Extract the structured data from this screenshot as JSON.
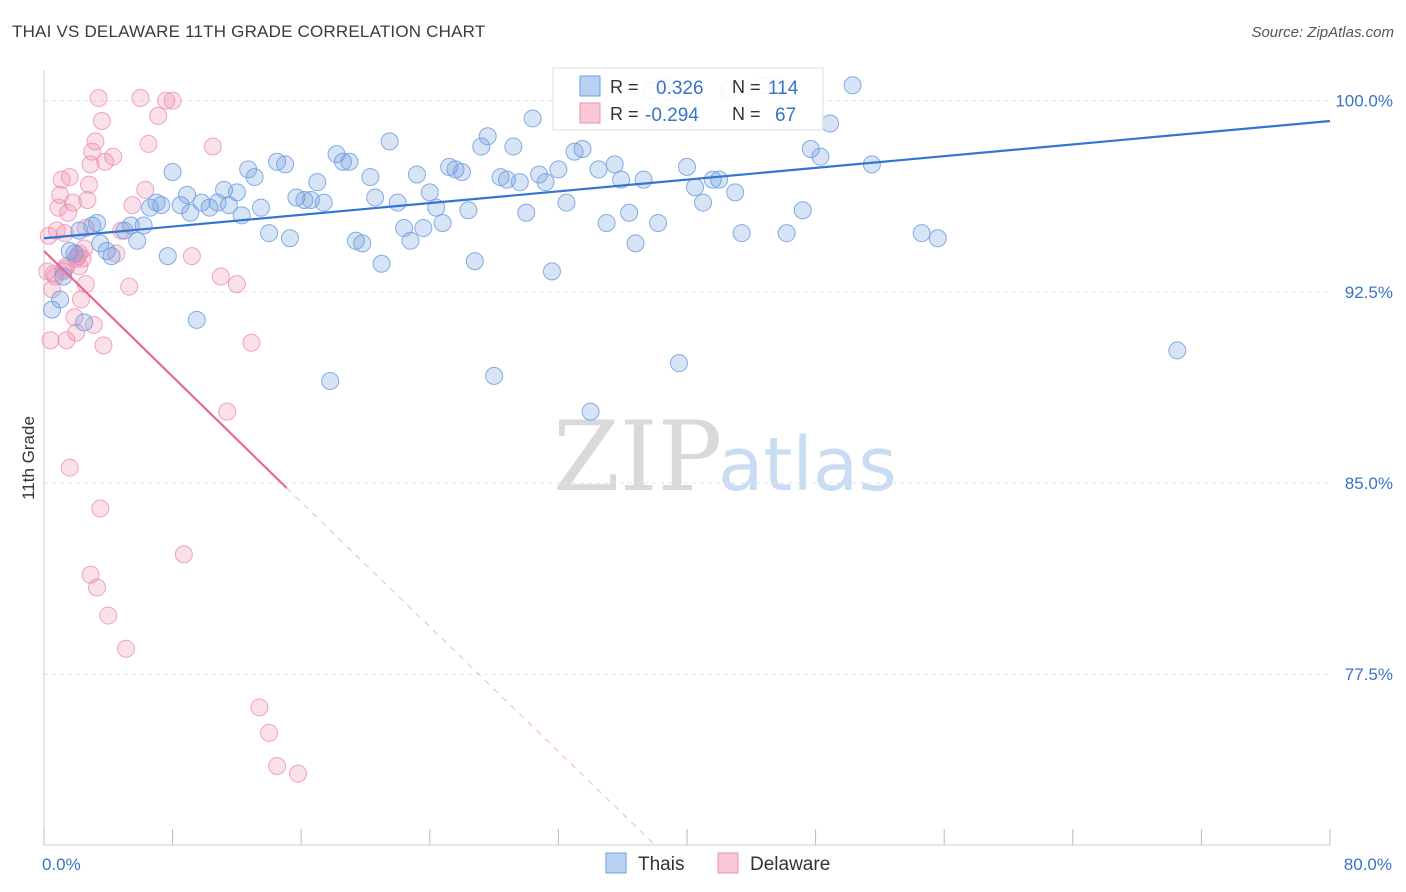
{
  "title": "THAI VS DELAWARE 11TH GRADE CORRELATION CHART",
  "source": "Source: ZipAtlas.com",
  "watermark": {
    "zip": "ZIP",
    "atlas": "atlas"
  },
  "colors": {
    "thai": "#6f9fdf",
    "delaware": "#ee8fb0",
    "thai_line": "#3574cf",
    "delaware_line": "#e56a97",
    "tick": "#3b73c5"
  },
  "legend": {
    "rows": [
      {
        "r_label": "R =",
        "r_value": "0.326",
        "n_label": "N =",
        "n_value": "114"
      },
      {
        "r_label": "R =",
        "r_value": "-0.294",
        "n_label": "N =",
        "n_value": "67"
      }
    ]
  },
  "chart_data": {
    "type": "scatter",
    "title": "THAI VS DELAWARE 11TH GRADE CORRELATION CHART",
    "xlabel": "",
    "ylabel": "11th Grade",
    "xlim": [
      0,
      80
    ],
    "ylim": [
      70.8,
      101.2
    ],
    "y_ticks": [
      {
        "value": 100,
        "label": "100.0%"
      },
      {
        "value": 92.5,
        "label": "92.5%"
      },
      {
        "value": 85,
        "label": "85.0%"
      },
      {
        "value": 77.5,
        "label": "77.5%"
      }
    ],
    "x_tick_labels": [
      {
        "value": 0,
        "label": "0.0%"
      },
      {
        "value": 80,
        "label": "80.0%"
      }
    ],
    "x_minor_ticks": [
      0,
      8,
      16,
      24,
      32,
      40,
      48,
      56,
      64,
      72,
      80
    ],
    "series": [
      {
        "name": "Thais",
        "trend": {
          "x": [
            0,
            80
          ],
          "y": [
            94.6,
            99.2
          ]
        },
        "points": [
          [
            0.5,
            91.8
          ],
          [
            1.0,
            92.2
          ],
          [
            1.2,
            93.1
          ],
          [
            1.6,
            94.1
          ],
          [
            1.9,
            94.0
          ],
          [
            2.2,
            94.9
          ],
          [
            2.5,
            91.3
          ],
          [
            3.0,
            95.1
          ],
          [
            3.3,
            95.2
          ],
          [
            3.5,
            94.4
          ],
          [
            3.9,
            94.1
          ],
          [
            4.2,
            93.9
          ],
          [
            5.0,
            94.9
          ],
          [
            5.4,
            95.1
          ],
          [
            5.8,
            94.5
          ],
          [
            6.2,
            95.1
          ],
          [
            6.6,
            95.8
          ],
          [
            7.0,
            96.0
          ],
          [
            7.3,
            95.9
          ],
          [
            7.7,
            93.9
          ],
          [
            8.0,
            97.2
          ],
          [
            8.5,
            95.9
          ],
          [
            8.9,
            96.3
          ],
          [
            9.1,
            95.6
          ],
          [
            9.5,
            91.4
          ],
          [
            9.8,
            96.0
          ],
          [
            10.3,
            95.8
          ],
          [
            10.8,
            96.0
          ],
          [
            11.2,
            96.5
          ],
          [
            11.5,
            95.9
          ],
          [
            12.0,
            96.4
          ],
          [
            12.3,
            95.5
          ],
          [
            12.7,
            97.3
          ],
          [
            13.1,
            97.0
          ],
          [
            13.5,
            95.8
          ],
          [
            14.0,
            94.8
          ],
          [
            14.5,
            97.6
          ],
          [
            15.0,
            97.5
          ],
          [
            15.3,
            94.6
          ],
          [
            15.7,
            96.2
          ],
          [
            16.2,
            96.1
          ],
          [
            16.6,
            96.1
          ],
          [
            17.0,
            96.8
          ],
          [
            17.4,
            96.0
          ],
          [
            17.8,
            89.0
          ],
          [
            18.2,
            97.9
          ],
          [
            18.6,
            97.6
          ],
          [
            19.0,
            97.6
          ],
          [
            19.4,
            94.5
          ],
          [
            19.8,
            94.4
          ],
          [
            20.3,
            97.0
          ],
          [
            20.6,
            96.2
          ],
          [
            21.0,
            93.6
          ],
          [
            21.5,
            98.4
          ],
          [
            22.0,
            96.0
          ],
          [
            22.4,
            95.0
          ],
          [
            22.8,
            94.5
          ],
          [
            23.2,
            97.1
          ],
          [
            23.6,
            95.0
          ],
          [
            24.0,
            96.4
          ],
          [
            24.4,
            95.8
          ],
          [
            24.8,
            95.2
          ],
          [
            25.2,
            97.4
          ],
          [
            25.6,
            97.3
          ],
          [
            26.0,
            97.2
          ],
          [
            26.4,
            95.7
          ],
          [
            26.8,
            93.7
          ],
          [
            27.2,
            98.2
          ],
          [
            27.6,
            98.6
          ],
          [
            28.0,
            89.2
          ],
          [
            28.4,
            97.0
          ],
          [
            28.8,
            96.9
          ],
          [
            29.2,
            98.2
          ],
          [
            29.6,
            96.8
          ],
          [
            30.0,
            95.6
          ],
          [
            30.4,
            99.3
          ],
          [
            30.8,
            97.1
          ],
          [
            31.2,
            96.8
          ],
          [
            31.6,
            93.3
          ],
          [
            32.0,
            97.3
          ],
          [
            32.5,
            96.0
          ],
          [
            33.0,
            98.0
          ],
          [
            33.5,
            98.1
          ],
          [
            34.0,
            87.8
          ],
          [
            34.5,
            97.3
          ],
          [
            35.0,
            95.2
          ],
          [
            35.5,
            97.5
          ],
          [
            35.9,
            96.9
          ],
          [
            36.4,
            95.6
          ],
          [
            36.8,
            94.4
          ],
          [
            37.3,
            96.9
          ],
          [
            37.8,
            100.4
          ],
          [
            38.2,
            95.2
          ],
          [
            38.6,
            100.6
          ],
          [
            39.0,
            100.3
          ],
          [
            39.5,
            89.7
          ],
          [
            40.0,
            97.4
          ],
          [
            40.5,
            96.6
          ],
          [
            41.0,
            96.0
          ],
          [
            41.6,
            96.9
          ],
          [
            42.0,
            96.9
          ],
          [
            42.6,
            100.4
          ],
          [
            43.0,
            96.4
          ],
          [
            43.4,
            94.8
          ],
          [
            44.8,
            100.6
          ],
          [
            45.6,
            100.6
          ],
          [
            46.2,
            94.8
          ],
          [
            47.2,
            95.7
          ],
          [
            47.7,
            98.1
          ],
          [
            48.3,
            97.8
          ],
          [
            48.9,
            99.1
          ],
          [
            50.3,
            100.6
          ],
          [
            51.5,
            97.5
          ],
          [
            54.6,
            94.8
          ],
          [
            55.6,
            94.6
          ],
          [
            70.5,
            90.2
          ]
        ]
      },
      {
        "name": "Delaware",
        "trend": {
          "x": [
            0,
            15.1
          ],
          "y": [
            94.1,
            84.8
          ]
        },
        "trend_extension": {
          "x": [
            15.1,
            38.0
          ],
          "y": [
            84.8,
            70.8
          ]
        },
        "points": [
          [
            0.2,
            93.3
          ],
          [
            0.3,
            94.7
          ],
          [
            0.4,
            90.6
          ],
          [
            0.5,
            92.6
          ],
          [
            0.6,
            93.2
          ],
          [
            0.7,
            93.1
          ],
          [
            0.8,
            94.9
          ],
          [
            0.9,
            95.8
          ],
          [
            1.0,
            96.3
          ],
          [
            1.1,
            96.9
          ],
          [
            1.2,
            93.3
          ],
          [
            1.3,
            93.4
          ],
          [
            1.4,
            93.5
          ],
          [
            1.5,
            95.6
          ],
          [
            1.6,
            97.0
          ],
          [
            1.8,
            96.0
          ],
          [
            2.0,
            93.8
          ],
          [
            2.1,
            93.9
          ],
          [
            2.2,
            94.0
          ],
          [
            2.4,
            93.8
          ],
          [
            2.5,
            94.2
          ],
          [
            2.6,
            95.0
          ],
          [
            2.7,
            96.1
          ],
          [
            2.8,
            96.7
          ],
          [
            2.9,
            97.5
          ],
          [
            3.0,
            98.0
          ],
          [
            3.2,
            98.4
          ],
          [
            3.4,
            100.1
          ],
          [
            3.6,
            99.2
          ],
          [
            3.8,
            97.6
          ],
          [
            1.3,
            94.8
          ],
          [
            1.4,
            90.6
          ],
          [
            1.6,
            85.6
          ],
          [
            2.0,
            90.9
          ],
          [
            2.2,
            93.5
          ],
          [
            2.6,
            92.8
          ],
          [
            2.9,
            81.4
          ],
          [
            3.1,
            91.2
          ],
          [
            3.3,
            80.9
          ],
          [
            3.5,
            84.0
          ],
          [
            3.7,
            90.4
          ],
          [
            4.0,
            79.8
          ],
          [
            4.3,
            97.8
          ],
          [
            5.1,
            78.5
          ],
          [
            5.3,
            92.7
          ],
          [
            6.0,
            100.1
          ],
          [
            6.3,
            96.5
          ],
          [
            7.6,
            100.0
          ],
          [
            8.7,
            82.2
          ],
          [
            9.2,
            93.9
          ],
          [
            10.5,
            98.2
          ],
          [
            11.0,
            93.1
          ],
          [
            11.4,
            87.8
          ],
          [
            12.0,
            92.8
          ],
          [
            12.9,
            90.5
          ],
          [
            13.4,
            76.2
          ],
          [
            14.0,
            75.2
          ],
          [
            14.5,
            73.9
          ],
          [
            15.8,
            73.6
          ],
          [
            4.5,
            94.0
          ],
          [
            4.8,
            94.9
          ],
          [
            5.5,
            95.9
          ],
          [
            6.5,
            98.3
          ],
          [
            7.1,
            99.4
          ],
          [
            8.0,
            100.0
          ],
          [
            1.9,
            91.5
          ],
          [
            2.3,
            92.2
          ]
        ]
      }
    ]
  }
}
